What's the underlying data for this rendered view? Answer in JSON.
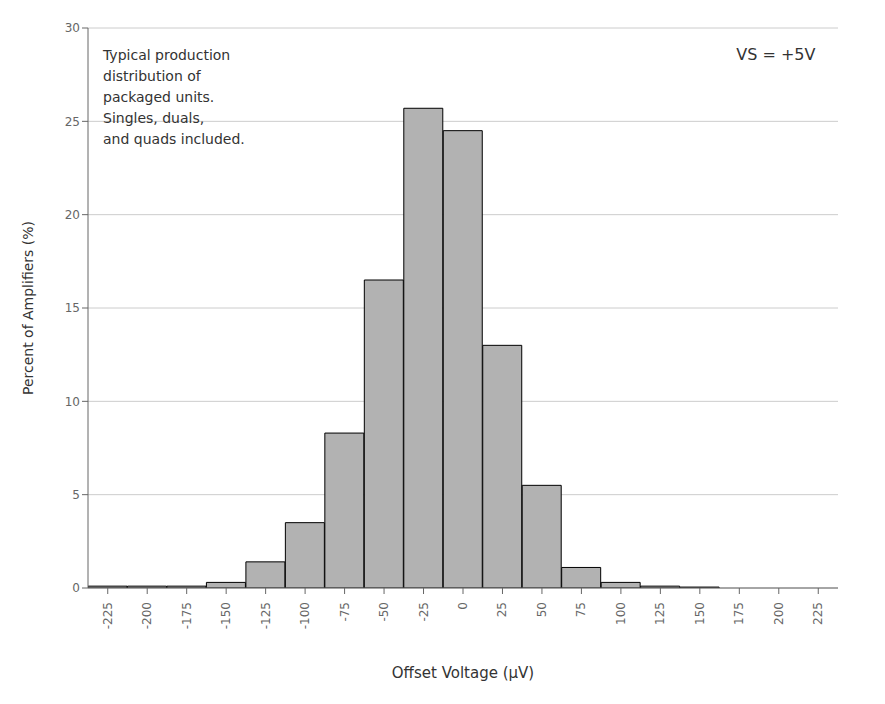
{
  "chart_data": {
    "type": "bar",
    "x": [
      -225,
      -200,
      -175,
      -150,
      -125,
      -100,
      -75,
      -50,
      -25,
      0,
      25,
      50,
      75,
      100,
      125,
      150,
      175,
      200,
      225
    ],
    "values": [
      0.1,
      0.1,
      0.1,
      0.3,
      1.4,
      3.5,
      8.3,
      16.5,
      25.7,
      24.5,
      13.0,
      5.5,
      1.1,
      0.3,
      0.1,
      0.05,
      0.0,
      0.0,
      0.0
    ],
    "color": "#b2b2b2",
    "xlabel": "Offset Voltage (μV)",
    "ylabel": "Percent of Amplifiers (%)",
    "xlim": [
      -237.5,
      237.5
    ],
    "xticks": [
      -225,
      -200,
      -175,
      -150,
      -125,
      -100,
      -75,
      -50,
      -25,
      0,
      25,
      50,
      75,
      100,
      125,
      150,
      175,
      200,
      225
    ],
    "ylim": [
      0,
      30
    ],
    "yticks": [
      0,
      5,
      10,
      15,
      20,
      25,
      30
    ],
    "grid": true,
    "annotations": [
      "Typical production\ndistribution of\npackaged units.\nSingles, duals,\nand quads included.",
      "VS = +5V"
    ]
  }
}
